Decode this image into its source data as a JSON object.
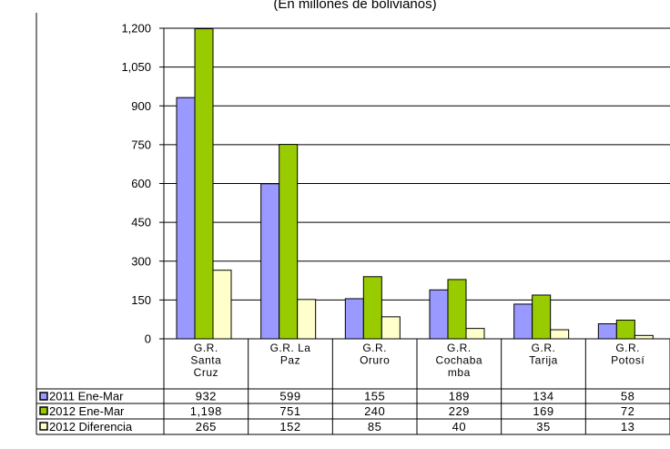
{
  "chart_data": {
    "type": "bar",
    "subtitle": "(En millones de bolivianos)",
    "categories": [
      [
        "G.R.",
        "Santa",
        "Cruz"
      ],
      [
        "G.R. La",
        "Paz"
      ],
      [
        "G.R.",
        "Oruro"
      ],
      [
        "G.R.",
        "Cochaba",
        "mba"
      ],
      [
        "G.R.",
        "Tarija"
      ],
      [
        "G.R.",
        "Potosí"
      ]
    ],
    "series": [
      {
        "name": "2011 Ene-Mar",
        "color": "#9999ff",
        "values": [
          932,
          599,
          155,
          189,
          134,
          58
        ],
        "labels": [
          "932",
          "599",
          "155",
          "189",
          "134",
          "58"
        ]
      },
      {
        "name": "2012 Ene-Mar",
        "color": "#99cc00",
        "values": [
          1198,
          751,
          240,
          229,
          169,
          72
        ],
        "labels": [
          "1,198",
          "751",
          "240",
          "229",
          "169",
          "72"
        ]
      },
      {
        "name": "2012 Diferencia",
        "color": "#ffffcc",
        "values": [
          265,
          152,
          85,
          40,
          35,
          13
        ],
        "labels": [
          "265",
          "152",
          "85",
          "40",
          "35",
          "13"
        ]
      }
    ],
    "ylim": [
      0,
      1200
    ],
    "yticks": [
      0,
      150,
      300,
      450,
      600,
      750,
      900,
      1050,
      1200
    ],
    "ytick_labels": [
      "0",
      "150",
      "300",
      "450",
      "600",
      "750",
      "900",
      "1,050",
      "1,200"
    ],
    "grid": true,
    "legend": "data-table"
  }
}
